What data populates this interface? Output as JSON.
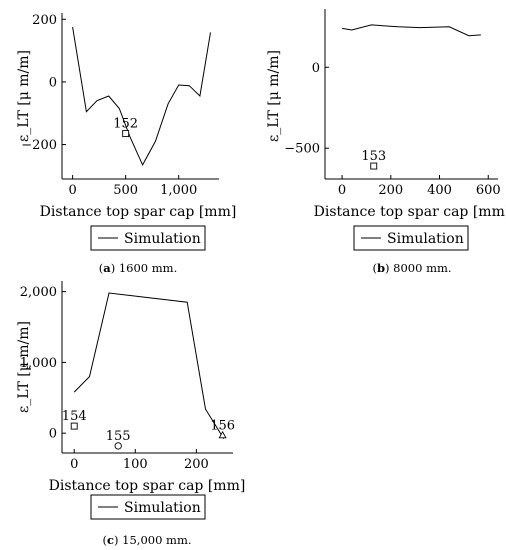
{
  "chart_data": [
    {
      "type": "line",
      "ylabel": "ε_LT [μ m/m]",
      "xlabel": "Distance top spar cap [mm]",
      "xlim": [
        -100,
        1380
      ],
      "ylim": [
        -310,
        220
      ],
      "xticks": [
        0,
        500,
        1000
      ],
      "xtick_labels": [
        "0",
        "500",
        "1,000"
      ],
      "yticks": [
        -200,
        0,
        200
      ],
      "ytick_labels": [
        "−200",
        "0",
        "200"
      ],
      "series": [
        {
          "name": "Simulation",
          "x": [
            0,
            130,
            230,
            340,
            440,
            540,
            660,
            780,
            900,
            1000,
            1100,
            1200,
            1300
          ],
          "y": [
            175,
            -95,
            -60,
            -45,
            -85,
            -175,
            -265,
            -190,
            -70,
            -10,
            -12,
            -45,
            158
          ]
        }
      ],
      "points": [
        {
          "label": "152",
          "x": 500,
          "y": -165,
          "marker": "square"
        }
      ],
      "legend": "bottom-center",
      "caption_letter": "a",
      "caption_text": " 1600 mm."
    },
    {
      "type": "line",
      "ylabel": "ε_LT [μ m/m]",
      "xlabel": "Distance top spar cap [mm]",
      "xlim": [
        -70,
        640
      ],
      "ylim": [
        -690,
        360
      ],
      "xticks": [
        0,
        200,
        400,
        600
      ],
      "xtick_labels": [
        "0",
        "200",
        "400",
        "600"
      ],
      "yticks": [
        -500,
        0
      ],
      "ytick_labels": [
        "−500",
        "0"
      ],
      "series": [
        {
          "name": "Simulation",
          "x": [
            0,
            40,
            120,
            230,
            320,
            440,
            520,
            570
          ],
          "y": [
            240,
            230,
            262,
            250,
            245,
            250,
            195,
            200
          ]
        }
      ],
      "points": [
        {
          "label": "153",
          "x": 130,
          "y": -610,
          "marker": "square"
        }
      ],
      "legend": "bottom-center",
      "caption_letter": "b",
      "caption_text": " 8000 mm."
    },
    {
      "type": "line",
      "ylabel": "ε_LT [μ m/m]",
      "xlabel": "Distance top spar cap [mm]",
      "xlim": [
        -20,
        260
      ],
      "ylim": [
        -280,
        2150
      ],
      "xticks": [
        0,
        100,
        200
      ],
      "xtick_labels": [
        "0",
        "100",
        "200"
      ],
      "yticks": [
        0,
        1000,
        2000
      ],
      "ytick_labels": [
        "0",
        "1,000",
        "2,000"
      ],
      "series": [
        {
          "name": "Simulation",
          "x": [
            0,
            25,
            57,
            185,
            215,
            245
          ],
          "y": [
            580,
            800,
            1980,
            1850,
            340,
            -80
          ]
        }
      ],
      "points": [
        {
          "label": "154",
          "x": 0,
          "y": 100,
          "marker": "square"
        },
        {
          "label": "155",
          "x": 72,
          "y": -180,
          "marker": "circle"
        },
        {
          "label": "156",
          "x": 243,
          "y": -30,
          "marker": "triangle"
        }
      ],
      "legend": "bottom-center",
      "caption_letter": "c",
      "caption_text": " 15,000 mm."
    }
  ]
}
